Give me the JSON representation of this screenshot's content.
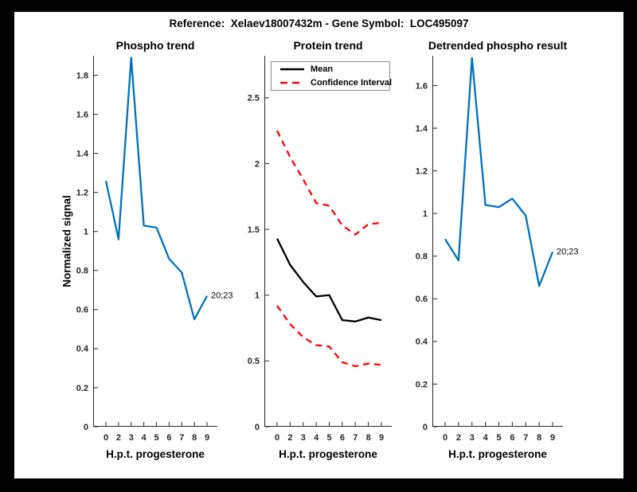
{
  "figure": {
    "title": "Reference:  Xelaev18007432m - Gene Symbol:  LOC495097",
    "border_color": "#000000",
    "page_background": "#ffffff",
    "axis_color": "#262626"
  },
  "chart_data": [
    {
      "type": "line",
      "title": "Phospho trend",
      "xlabel": "H.p.t. progesterone",
      "ylabel": "Normalized signal",
      "categories": [
        "0",
        "2",
        "3",
        "4",
        "5",
        "6",
        "7",
        "8",
        "9"
      ],
      "ylim": [
        0,
        1.9
      ],
      "grid": false,
      "legend_position": "none",
      "yticks": {
        "values": [
          0,
          0.2,
          0.4,
          0.6,
          0.8,
          1,
          1.2,
          1.4,
          1.6,
          1.8
        ],
        "labels": [
          "0",
          "0.2",
          "0.4",
          "0.6",
          "0.8",
          "1",
          "1.2",
          "1.4",
          "1.6",
          "1.8"
        ]
      },
      "series": [
        {
          "name": "Phospho signal",
          "color": "#0072BD",
          "dash": false,
          "values": [
            1.26,
            0.96,
            1.89,
            1.03,
            1.02,
            0.86,
            0.79,
            0.55,
            0.67
          ]
        }
      ],
      "annotation": {
        "text": "20;23",
        "at_index": 8
      }
    },
    {
      "type": "line",
      "title": "Protein trend",
      "xlabel": "H.p.t. progesterone",
      "ylabel": "",
      "categories": [
        "0",
        "2",
        "3",
        "4",
        "5",
        "6",
        "7",
        "8",
        "9"
      ],
      "ylim": [
        0,
        2.82
      ],
      "grid": false,
      "legend_position": "top-left",
      "yticks": {
        "values": [
          0,
          0.5,
          1,
          1.5,
          2,
          2.5
        ],
        "labels": [
          "0",
          "0.5",
          "1",
          "1.5",
          "2",
          "2.5"
        ]
      },
      "legend": {
        "entries": [
          {
            "label": "Mean",
            "color": "#000000",
            "dash": false
          },
          {
            "label": "Confidence Interval",
            "color": "#FF0000",
            "dash": true
          }
        ]
      },
      "series": [
        {
          "name": "Mean",
          "color": "#000000",
          "dash": false,
          "values": [
            1.43,
            1.23,
            1.1,
            0.99,
            1.0,
            0.81,
            0.8,
            0.83,
            0.81
          ]
        },
        {
          "name": "Confidence Interval upper",
          "color": "#FF0000",
          "dash": true,
          "values": [
            2.25,
            2.05,
            1.88,
            1.7,
            1.68,
            1.53,
            1.46,
            1.54,
            1.55
          ]
        },
        {
          "name": "Confidence Interval lower",
          "color": "#FF0000",
          "dash": true,
          "values": [
            0.92,
            0.78,
            0.68,
            0.62,
            0.61,
            0.49,
            0.46,
            0.48,
            0.47
          ]
        }
      ]
    },
    {
      "type": "line",
      "title": "Detrended phospho result",
      "xlabel": "H.p.t. progesterone",
      "ylabel": "",
      "categories": [
        "0",
        "2",
        "3",
        "4",
        "5",
        "6",
        "7",
        "8",
        "9"
      ],
      "ylim": [
        0,
        1.74
      ],
      "grid": false,
      "legend_position": "none",
      "yticks": {
        "values": [
          0,
          0.2,
          0.4,
          0.6,
          0.8,
          1,
          1.2,
          1.4,
          1.6
        ],
        "labels": [
          "0",
          "0.2",
          "0.4",
          "0.6",
          "0.8",
          "1",
          "1.2",
          "1.4",
          "1.6"
        ]
      },
      "series": [
        {
          "name": "Detrended phospho signal",
          "color": "#0072BD",
          "dash": false,
          "values": [
            0.88,
            0.78,
            1.73,
            1.04,
            1.03,
            1.07,
            0.99,
            0.66,
            0.82
          ]
        }
      ],
      "annotation": {
        "text": "20;23",
        "at_index": 8
      }
    }
  ]
}
